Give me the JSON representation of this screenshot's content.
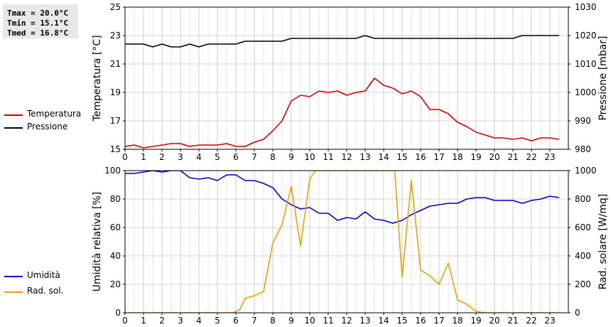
{
  "stats": {
    "tmax": "Tmax = 20.0°C",
    "tmin": "Tmin = 15.1°C",
    "tmed": "Tmed = 16.8°C"
  },
  "legend_top": [
    {
      "label": "Temperatura",
      "color": "#d40000"
    },
    {
      "label": "Pressione",
      "color": "#000000"
    }
  ],
  "legend_bottom": [
    {
      "label": "Umidità",
      "color": "#0000c8"
    },
    {
      "label": "Rad. sol.",
      "color": "#f0a000"
    }
  ],
  "chart_data": [
    {
      "type": "line",
      "xlim": [
        0,
        24
      ],
      "xticks": [
        0,
        1,
        2,
        3,
        4,
        5,
        6,
        7,
        8,
        9,
        10,
        11,
        12,
        13,
        14,
        15,
        16,
        17,
        18,
        19,
        20,
        21,
        22,
        23
      ],
      "ylabel": "Temperatura [°C]",
      "ylim": [
        15,
        25
      ],
      "yticks": [
        15,
        17,
        19,
        21,
        23,
        25
      ],
      "y2label": "Pressione [mbar]",
      "y2lim": [
        980,
        1030
      ],
      "y2ticks": [
        980,
        990,
        1000,
        1010,
        1020,
        1030
      ],
      "grid": true,
      "series": [
        {
          "name": "Temperatura",
          "axis": "left",
          "color": "#d40000",
          "x": [
            0,
            0.5,
            1,
            1.5,
            2,
            2.5,
            3,
            3.5,
            4,
            4.5,
            5,
            5.5,
            6,
            6.5,
            7,
            7.5,
            8,
            8.5,
            9,
            9.5,
            10,
            10.5,
            11,
            11.5,
            12,
            12.5,
            13,
            13.5,
            14,
            14.5,
            15,
            15.5,
            16,
            16.5,
            17,
            17.5,
            18,
            18.5,
            19,
            19.5,
            20,
            20.5,
            21,
            21.5,
            22,
            22.5,
            23,
            23.5
          ],
          "values": [
            15.2,
            15.3,
            15.1,
            15.2,
            15.3,
            15.4,
            15.4,
            15.2,
            15.3,
            15.3,
            15.3,
            15.4,
            15.2,
            15.2,
            15.5,
            15.7,
            16.3,
            17.0,
            18.4,
            18.8,
            18.7,
            19.1,
            19.0,
            19.1,
            18.8,
            19.0,
            19.1,
            20.0,
            19.5,
            19.3,
            18.9,
            19.1,
            18.7,
            17.8,
            17.8,
            17.5,
            16.9,
            16.6,
            16.2,
            16.0,
            15.8,
            15.8,
            15.7,
            15.8,
            15.6,
            15.8,
            15.8,
            15.7
          ]
        },
        {
          "name": "Pressione",
          "axis": "right",
          "color": "#000000",
          "x": [
            0,
            0.5,
            1,
            1.5,
            2,
            2.5,
            3,
            3.5,
            4,
            4.5,
            5,
            5.5,
            6,
            6.5,
            7,
            7.5,
            8,
            8.5,
            9,
            9.5,
            10,
            10.5,
            11,
            11.5,
            12,
            12.5,
            13,
            13.5,
            14,
            14.5,
            15,
            15.5,
            16,
            16.5,
            17,
            17.5,
            18,
            18.5,
            19,
            19.5,
            20,
            20.5,
            21,
            21.5,
            22,
            22.5,
            23,
            23.5
          ],
          "values": [
            1017,
            1017,
            1017,
            1016,
            1017,
            1016,
            1016,
            1017,
            1016,
            1017,
            1017,
            1017,
            1017,
            1018,
            1018,
            1018,
            1018,
            1018,
            1019,
            1019,
            1019,
            1019,
            1019,
            1019,
            1019,
            1019,
            1020,
            1019,
            1019,
            1019,
            1019,
            1019,
            1019,
            1019,
            1019,
            1019,
            1019,
            1019,
            1019,
            1019,
            1019,
            1019,
            1019,
            1020,
            1020,
            1020,
            1020,
            1020
          ]
        }
      ]
    },
    {
      "type": "line",
      "xlim": [
        0,
        24
      ],
      "xticks": [
        0,
        1,
        2,
        3,
        4,
        5,
        6,
        7,
        8,
        9,
        10,
        11,
        12,
        13,
        14,
        15,
        16,
        17,
        18,
        19,
        20,
        21,
        22,
        23
      ],
      "ylabel": "Umidità relativa [%]",
      "ylim": [
        0,
        100
      ],
      "yticks": [
        0,
        20,
        40,
        60,
        80,
        100
      ],
      "y2label": "Rad. solare [W/mq]",
      "y2lim": [
        0,
        1000
      ],
      "y2ticks": [
        0,
        200,
        400,
        600,
        800,
        1000
      ],
      "grid": true,
      "series": [
        {
          "name": "Umidità",
          "axis": "left",
          "color": "#0000c8",
          "x": [
            0,
            0.5,
            1,
            1.5,
            2,
            2.5,
            3,
            3.5,
            4,
            4.5,
            5,
            5.5,
            6,
            6.5,
            7,
            7.5,
            8,
            8.5,
            9,
            9.5,
            10,
            10.5,
            11,
            11.5,
            12,
            12.5,
            13,
            13.5,
            14,
            14.5,
            15,
            15.5,
            16,
            16.5,
            17,
            17.5,
            18,
            18.5,
            19,
            19.5,
            20,
            20.5,
            21,
            21.5,
            22,
            22.5,
            23,
            23.5
          ],
          "values": [
            98,
            98,
            99,
            100,
            99,
            100,
            100,
            95,
            94,
            95,
            93,
            97,
            97,
            93,
            93,
            91,
            88,
            80,
            76,
            73,
            74,
            70,
            70,
            65,
            67,
            66,
            71,
            66,
            65,
            63,
            65,
            69,
            72,
            75,
            76,
            77,
            77,
            80,
            81,
            81,
            79,
            79,
            79,
            77,
            79,
            80,
            82,
            81
          ]
        },
        {
          "name": "Rad. sol.",
          "axis": "right",
          "color": "#f0a000",
          "x": [
            0,
            0.5,
            1,
            1.5,
            2,
            2.5,
            3,
            3.5,
            4,
            4.5,
            5,
            5.5,
            5.8,
            6.2,
            6.5,
            7,
            7.5,
            8,
            8.5,
            9,
            9.5,
            10,
            10.3,
            14.6,
            15,
            15.5,
            16,
            16.5,
            17,
            17.5,
            18,
            18.5,
            19,
            19.5,
            20,
            20.5,
            21,
            21.5,
            22,
            22.5,
            23,
            23.5
          ],
          "values": [
            0,
            0,
            0,
            0,
            0,
            0,
            0,
            0,
            0,
            0,
            0,
            0,
            0,
            20,
            100,
            120,
            150,
            490,
            620,
            890,
            470,
            940,
            1000,
            1000,
            250,
            930,
            300,
            260,
            200,
            350,
            90,
            60,
            10,
            0,
            0,
            0,
            0,
            0,
            0,
            0,
            0,
            0
          ]
        }
      ]
    }
  ]
}
